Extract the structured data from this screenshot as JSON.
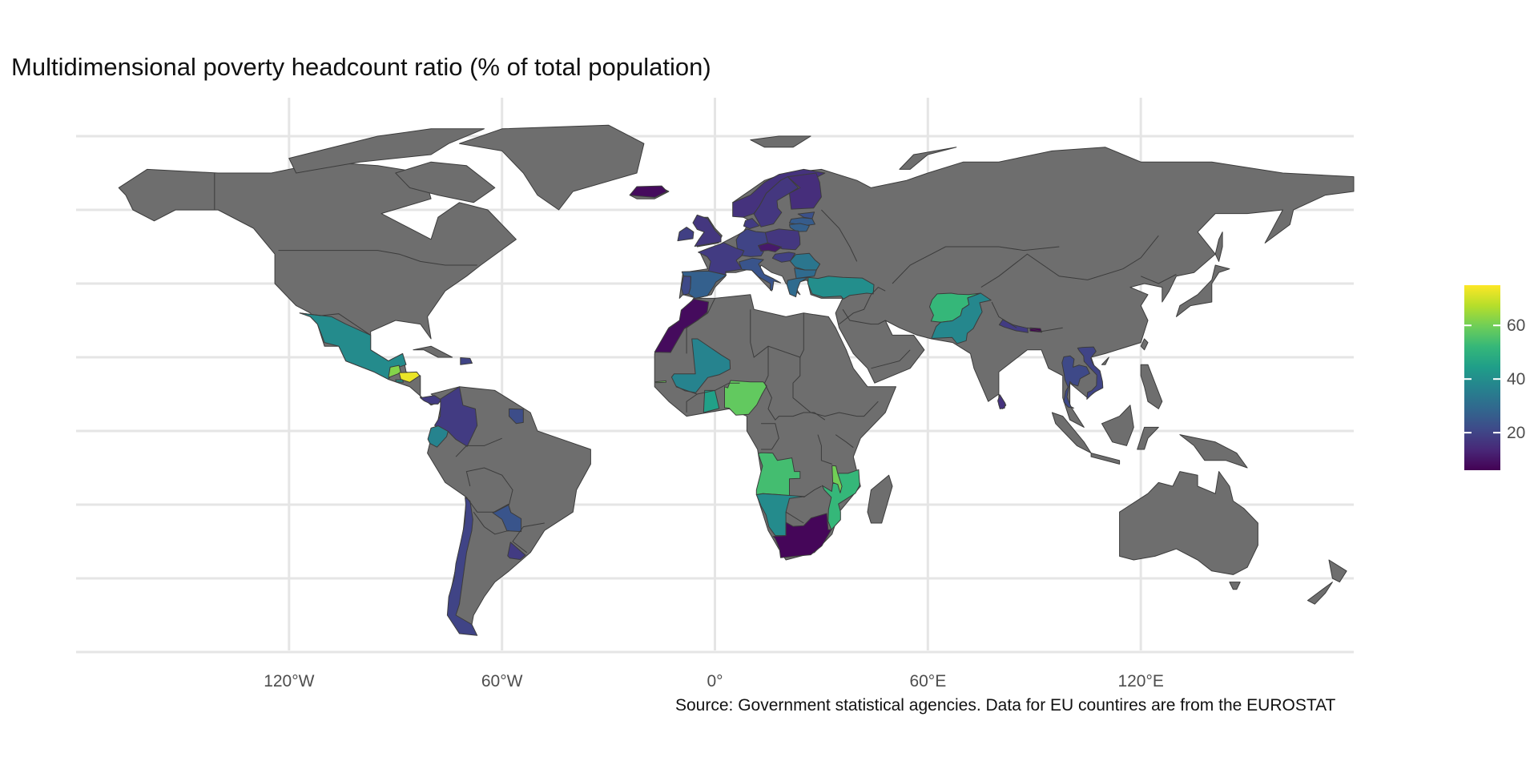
{
  "title": "Multidimensional poverty headcount ratio (% of total population)",
  "source": "Source: Government statistical agencies. Data for EU countires are from the EUROSTAT",
  "map": {
    "projection": "equirectangular",
    "no_data_color": "#6e6e6e",
    "border_color": "#3c3c3c",
    "gridlines": true,
    "x_ticks": [
      "120°W",
      "60°W",
      "0°",
      "60°E",
      "120°E"
    ],
    "x_tick_lon": [
      -120,
      -60,
      0,
      60,
      120
    ],
    "y_grid_lat": [
      80,
      60,
      40,
      20,
      0,
      -20,
      -40,
      -60
    ]
  },
  "legend": {
    "type": "colorbar",
    "palette": "viridis",
    "colors": [
      "#440154",
      "#482878",
      "#3e4a89",
      "#31688e",
      "#26828e",
      "#1f9e89",
      "#35b779",
      "#6ece58",
      "#b5de2b",
      "#fde725"
    ],
    "range": [
      6,
      75
    ],
    "ticks": [
      "20",
      "40",
      "60"
    ],
    "tick_values": [
      20,
      40,
      60
    ],
    "placement": "right"
  },
  "chart_data": {
    "type": "choropleth",
    "title": "Multidimensional poverty headcount ratio (% of total population)",
    "value_range": [
      6,
      75
    ],
    "regions": [
      {
        "name": "Mexico",
        "value": 39
      },
      {
        "name": "Guatemala",
        "value": 62
      },
      {
        "name": "Honduras",
        "value": 73
      },
      {
        "name": "El Salvador",
        "value": 42
      },
      {
        "name": "Panama",
        "value": 18
      },
      {
        "name": "Dominican Republic",
        "value": 20
      },
      {
        "name": "Colombia",
        "value": 18
      },
      {
        "name": "Ecuador",
        "value": 37
      },
      {
        "name": "Suriname",
        "value": 22
      },
      {
        "name": "Chile",
        "value": 20
      },
      {
        "name": "Uruguay",
        "value": 18
      },
      {
        "name": "Paraguay",
        "value": 24
      },
      {
        "name": "Iceland",
        "value": 8
      },
      {
        "name": "Ireland",
        "value": 19
      },
      {
        "name": "United Kingdom",
        "value": 17
      },
      {
        "name": "Norway",
        "value": 16
      },
      {
        "name": "Sweden",
        "value": 17
      },
      {
        "name": "Finland",
        "value": 15
      },
      {
        "name": "Denmark",
        "value": 18
      },
      {
        "name": "Estonia",
        "value": 23
      },
      {
        "name": "Latvia",
        "value": 26
      },
      {
        "name": "Lithuania",
        "value": 27
      },
      {
        "name": "Germany",
        "value": 20
      },
      {
        "name": "Poland",
        "value": 17
      },
      {
        "name": "Czechia",
        "value": 11
      },
      {
        "name": "France",
        "value": 18
      },
      {
        "name": "Spain",
        "value": 27
      },
      {
        "name": "Portugal",
        "value": 21
      },
      {
        "name": "Italy",
        "value": 24
      },
      {
        "name": "Hungary",
        "value": 19
      },
      {
        "name": "Romania",
        "value": 33
      },
      {
        "name": "Bulgaria",
        "value": 30
      },
      {
        "name": "Greece",
        "value": 30
      },
      {
        "name": "Turkey",
        "value": 40
      },
      {
        "name": "Morocco",
        "value": 8
      },
      {
        "name": "Mali",
        "value": 37
      },
      {
        "name": "Nigeria",
        "value": 58
      },
      {
        "name": "Ghana",
        "value": 45
      },
      {
        "name": "Gambia",
        "value": 60
      },
      {
        "name": "Angola",
        "value": 54
      },
      {
        "name": "Namibia",
        "value": 39
      },
      {
        "name": "South Africa",
        "value": 7
      },
      {
        "name": "Mozambique",
        "value": 52
      },
      {
        "name": "Malawi",
        "value": 60
      },
      {
        "name": "Afghanistan",
        "value": 52
      },
      {
        "name": "Pakistan",
        "value": 38
      },
      {
        "name": "Nepal",
        "value": 18
      },
      {
        "name": "Bhutan",
        "value": 6
      },
      {
        "name": "Sri Lanka",
        "value": 16
      },
      {
        "name": "Thailand",
        "value": 21
      },
      {
        "name": "Vietnam",
        "value": 20
      }
    ]
  }
}
